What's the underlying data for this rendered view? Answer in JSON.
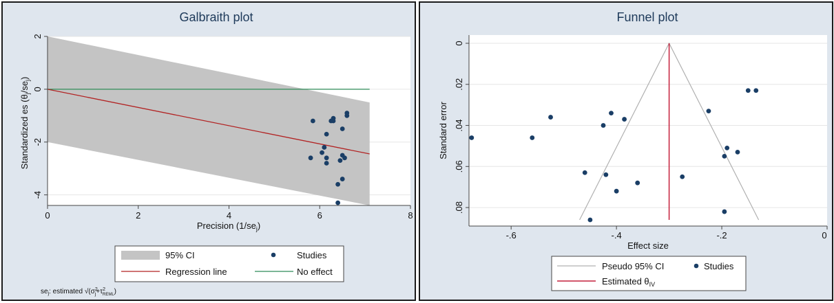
{
  "colors": {
    "panel_bg": "#dfe6ee",
    "title": "#1e3a5a",
    "ci_band": "#c4c4c4",
    "points": "#1a3e66",
    "regression": "#b22222",
    "no_effect": "#2e8b57",
    "pseudo_ci": "#b0b0b0",
    "estimate": "#c41e3a"
  },
  "galbraith": {
    "note_prefix": "se",
    "note_sub": "j",
    "note_text": ": estimated √(σ",
    "note_sup1": "2",
    "note_sub1": "j",
    "note_plus": "+τ",
    "note_sup2": "2",
    "note_sub2": "REML",
    "note_close": ")"
  },
  "funnel": {},
  "chart_data": [
    {
      "type": "scatter",
      "title": "Galbraith plot",
      "xlabel": "Precision (1/se",
      "xlabel_sub": "j",
      "xlabel_close": ")",
      "ylabel": "Standardized es (θ",
      "ylabel_sub": "j",
      "ylabel_mid": "/se",
      "ylabel_sub2": "j",
      "ylabel_close": ")",
      "xlim": [
        0,
        8
      ],
      "ylim": [
        -4.4,
        2
      ],
      "xticks": [
        0,
        2,
        4,
        6,
        8
      ],
      "xtick_labels": [
        "0",
        "2",
        "4",
        "6",
        "8"
      ],
      "yticks": [
        2,
        0,
        -2,
        -4
      ],
      "ytick_labels": [
        "2",
        "0",
        "-2",
        "-4"
      ],
      "grid": true,
      "legend_position": "bottom",
      "legend": [
        "95% CI",
        "Studies",
        "Regression line",
        "No effect"
      ],
      "ci_band": {
        "x": [
          0,
          7.1
        ],
        "lower": [
          -2,
          -4.4
        ],
        "upper": [
          2,
          -0.5
        ]
      },
      "regression_line": {
        "x": [
          0,
          7.1
        ],
        "y": [
          0,
          -2.45
        ]
      },
      "no_effect_line": {
        "x": [
          0,
          7.1
        ],
        "y": [
          0,
          0
        ]
      },
      "series": [
        {
          "name": "Studies",
          "x": [
            6.6,
            6.6,
            6.3,
            6.3,
            5.85,
            6.25,
            6.5,
            6.15,
            6.1,
            6.05,
            6.15,
            5.8,
            6.5,
            6.45,
            6.55,
            6.15,
            6.5,
            6.4,
            6.4
          ],
          "y": [
            -0.9,
            -1.0,
            -1.1,
            -1.2,
            -1.2,
            -1.2,
            -1.5,
            -1.7,
            -2.2,
            -2.4,
            -2.6,
            -2.6,
            -2.5,
            -2.7,
            -2.6,
            -2.8,
            -3.4,
            -3.6,
            -4.3
          ]
        }
      ]
    },
    {
      "type": "scatter",
      "title": "Funnel plot",
      "xlabel": "Effect size",
      "ylabel": "Standard error",
      "xlim": [
        -0.68,
        0
      ],
      "ylim": [
        0,
        0.086
      ],
      "y_reversed": true,
      "xticks": [
        -0.6,
        -0.4,
        -0.2,
        0
      ],
      "xtick_labels": [
        "-.6",
        "-.4",
        "-.2",
        "0"
      ],
      "yticks": [
        0,
        0.02,
        0.04,
        0.06,
        0.08
      ],
      "ytick_labels": [
        "0",
        ".02",
        ".04",
        ".06",
        ".08"
      ],
      "grid": true,
      "legend_position": "bottom",
      "legend": [
        "Pseudo 95% CI",
        "Studies",
        "Estimated θ"
      ],
      "legend_sub": "IV",
      "pseudo_ci": {
        "apex": [
          -0.3,
          0
        ],
        "left_bottom": [
          -0.47,
          0.086
        ],
        "right_bottom": [
          -0.13,
          0.086
        ]
      },
      "estimate_line": {
        "x": -0.3,
        "y": [
          0,
          0.086
        ]
      },
      "series": [
        {
          "name": "Studies",
          "x": [
            -0.15,
            -0.135,
            -0.225,
            -0.525,
            -0.41,
            -0.385,
            -0.425,
            -0.675,
            -0.56,
            -0.19,
            -0.17,
            -0.195,
            -0.46,
            -0.42,
            -0.275,
            -0.36,
            -0.4,
            -0.195,
            -0.45
          ],
          "y": [
            0.023,
            0.023,
            0.033,
            0.036,
            0.034,
            0.037,
            0.04,
            0.046,
            0.046,
            0.051,
            0.053,
            0.055,
            0.063,
            0.064,
            0.065,
            0.068,
            0.072,
            0.082,
            0.086
          ]
        }
      ]
    }
  ]
}
